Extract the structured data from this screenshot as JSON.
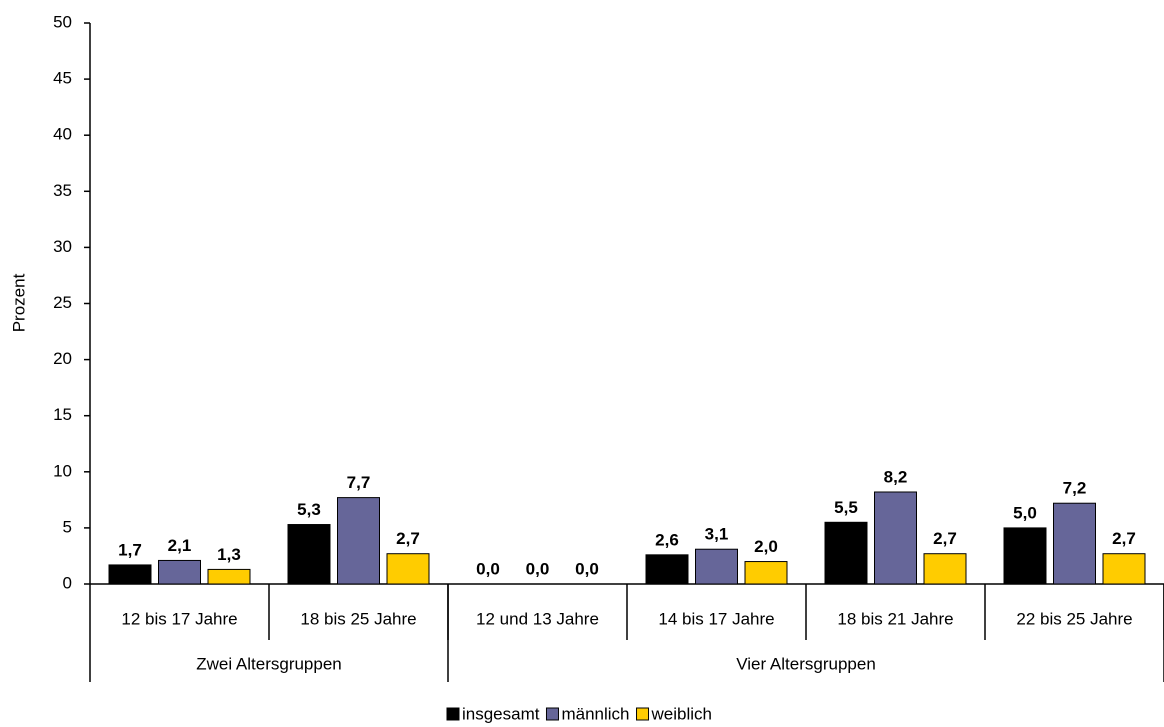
{
  "chart_data": {
    "type": "bar",
    "y_label": "Prozent",
    "category_groups": [
      {
        "name": "Zwei Altersgruppen",
        "categories": [
          "12 bis 17 Jahre",
          "18 bis 25 Jahre"
        ]
      },
      {
        "name": "Vier Altersgruppen",
        "categories": [
          "12 und 13 Jahre",
          "14 bis 17 Jahre",
          "18 bis 21 Jahre",
          "22 bis 25 Jahre"
        ]
      }
    ],
    "series": [
      {
        "name": "insgesamt",
        "color": "#000000",
        "values": [
          1.7,
          5.3,
          0.0,
          2.6,
          5.5,
          5.0
        ],
        "value_labels": [
          "1,7",
          "5,3",
          "0,0",
          "2,6",
          "5,5",
          "5,0"
        ]
      },
      {
        "name": "männlich",
        "color": "#666699",
        "values": [
          2.1,
          7.7,
          0.0,
          3.1,
          8.2,
          7.2
        ],
        "value_labels": [
          "2,1",
          "7,7",
          "0,0",
          "3,1",
          "8,2",
          "7,2"
        ]
      },
      {
        "name": "weiblich",
        "color": "#ffcc00",
        "values": [
          1.3,
          2.7,
          0.0,
          2.0,
          2.7,
          2.7
        ],
        "value_labels": [
          "1,3",
          "2,7",
          "0,0",
          "2,0",
          "2,7",
          "2,7"
        ]
      }
    ],
    "ylim": [
      0,
      50
    ],
    "yticks": [
      0,
      5,
      10,
      15,
      20,
      25,
      30,
      35,
      40,
      45,
      50
    ],
    "grid": false,
    "legend": "bottom"
  }
}
